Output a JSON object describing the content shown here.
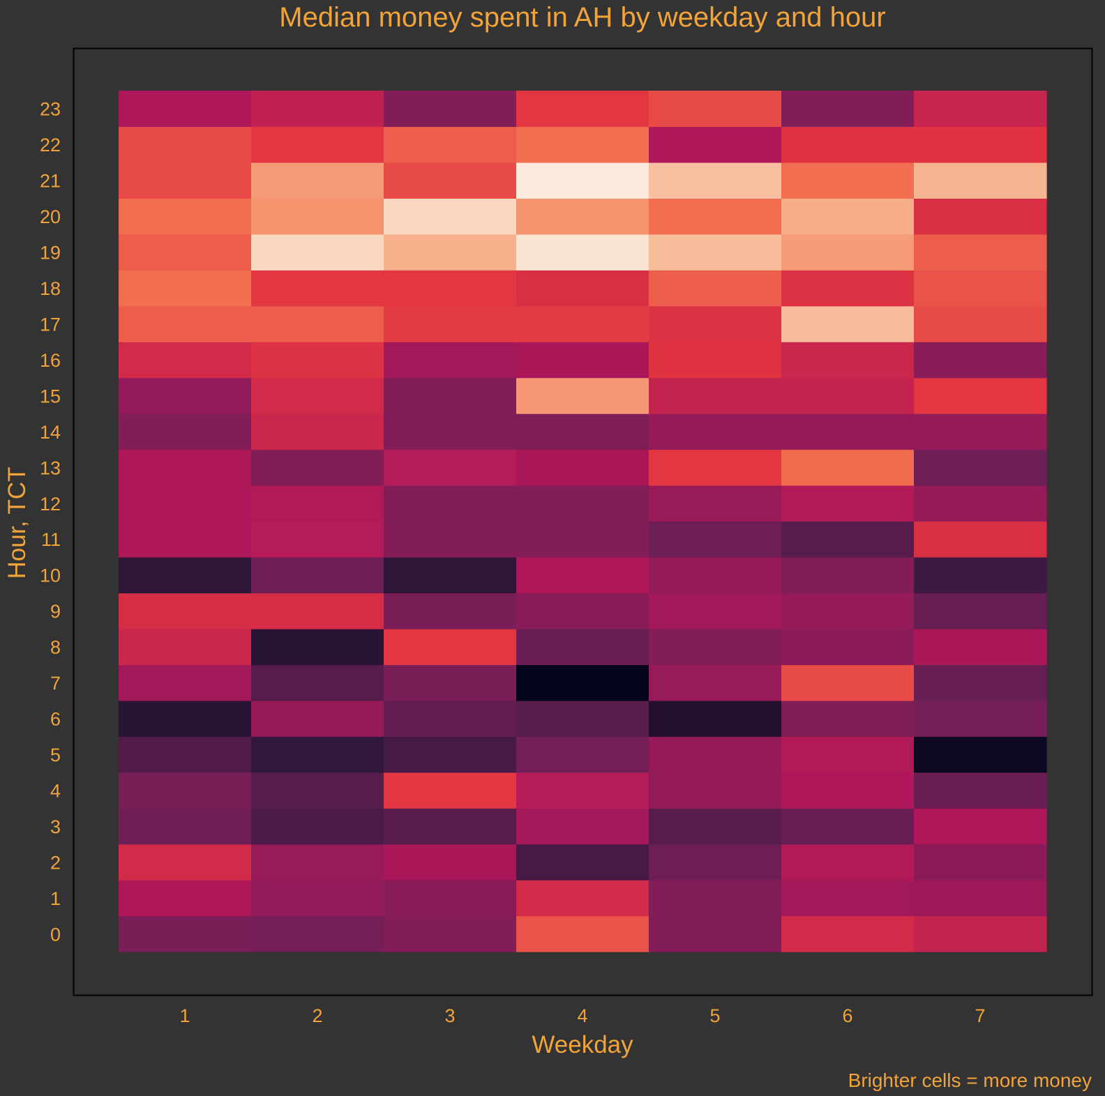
{
  "chart_data": {
    "type": "heatmap",
    "title": "Median money spent in AH by weekday and hour",
    "xlabel": "Weekday",
    "ylabel": "Hour, TCT",
    "caption": "Brighter cells = more money",
    "x": [
      "1",
      "2",
      "3",
      "4",
      "5",
      "6",
      "7"
    ],
    "y": [
      "0",
      "1",
      "2",
      "3",
      "4",
      "5",
      "6",
      "7",
      "8",
      "9",
      "10",
      "11",
      "12",
      "13",
      "14",
      "15",
      "16",
      "17",
      "18",
      "19",
      "20",
      "21",
      "22",
      "23"
    ],
    "value_scale": "relative intensity 0 (darkest) to 1 (brightest)",
    "colormap": [
      "#03051a",
      "#36193e",
      "#701f57",
      "#ad1759",
      "#e13342",
      "#f37651",
      "#f6b48f",
      "#faebdd"
    ],
    "legend": "none",
    "grid": false,
    "values": [
      [
        0.31,
        0.3,
        0.33,
        0.64,
        0.33,
        0.53,
        0.49
      ],
      [
        0.43,
        0.36,
        0.34,
        0.53,
        0.33,
        0.4,
        0.39
      ],
      [
        0.53,
        0.38,
        0.42,
        0.18,
        0.28,
        0.44,
        0.35
      ],
      [
        0.28,
        0.2,
        0.22,
        0.41,
        0.22,
        0.26,
        0.43
      ],
      [
        0.31,
        0.22,
        0.58,
        0.45,
        0.37,
        0.43,
        0.27
      ],
      [
        0.21,
        0.13,
        0.18,
        0.29,
        0.37,
        0.44,
        0.03
      ],
      [
        0.11,
        0.37,
        0.25,
        0.23,
        0.08,
        0.32,
        0.3
      ],
      [
        0.4,
        0.22,
        0.31,
        0.0,
        0.38,
        0.62,
        0.26
      ],
      [
        0.51,
        0.11,
        0.58,
        0.27,
        0.33,
        0.35,
        0.42
      ],
      [
        0.54,
        0.54,
        0.31,
        0.34,
        0.4,
        0.37,
        0.26
      ],
      [
        0.12,
        0.28,
        0.12,
        0.43,
        0.37,
        0.33,
        0.16
      ],
      [
        0.43,
        0.45,
        0.33,
        0.33,
        0.28,
        0.22,
        0.55
      ],
      [
        0.43,
        0.44,
        0.33,
        0.33,
        0.38,
        0.44,
        0.37
      ],
      [
        0.43,
        0.33,
        0.45,
        0.42,
        0.58,
        0.69,
        0.28
      ],
      [
        0.33,
        0.51,
        0.33,
        0.32,
        0.37,
        0.37,
        0.37
      ],
      [
        0.36,
        0.53,
        0.33,
        0.79,
        0.49,
        0.49,
        0.58
      ],
      [
        0.53,
        0.56,
        0.4,
        0.42,
        0.57,
        0.51,
        0.34
      ],
      [
        0.66,
        0.66,
        0.59,
        0.59,
        0.56,
        0.88,
        0.62
      ],
      [
        0.7,
        0.58,
        0.58,
        0.55,
        0.66,
        0.56,
        0.64
      ],
      [
        0.66,
        0.95,
        0.85,
        0.98,
        0.88,
        0.8,
        0.66
      ],
      [
        0.7,
        0.78,
        0.95,
        0.78,
        0.7,
        0.84,
        0.55
      ],
      [
        0.62,
        0.8,
        0.62,
        1.0,
        0.89,
        0.7,
        0.86
      ],
      [
        0.62,
        0.58,
        0.66,
        0.7,
        0.43,
        0.57,
        0.57
      ],
      [
        0.43,
        0.48,
        0.33,
        0.58,
        0.62,
        0.33,
        0.5
      ]
    ]
  }
}
